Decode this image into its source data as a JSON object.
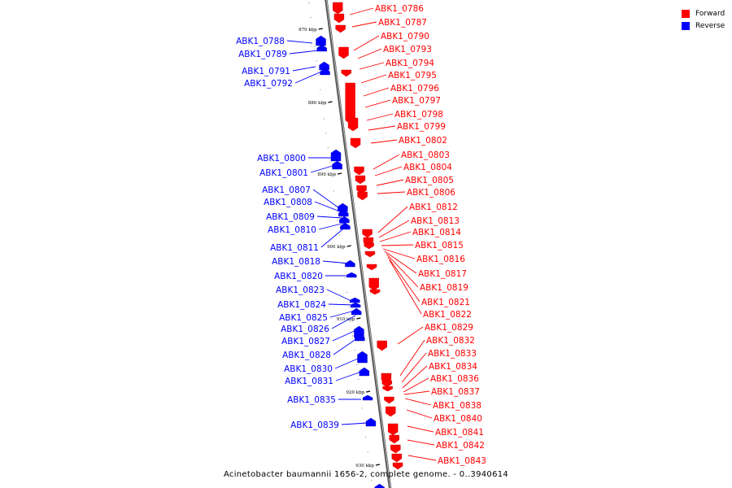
{
  "colors": {
    "forward": "#ff0000",
    "reverse": "#0000ff",
    "backbone": "#888888"
  },
  "legend": [
    {
      "label": "Forward",
      "color": "#ff0000"
    },
    {
      "label": "Reverse",
      "color": "#0000ff"
    }
  ],
  "caption": "Acinetobacter baumannii 1656-2, complete genome. - 0..3940614",
  "ticks": [
    "870 kbp",
    "880 kbp",
    "890 kbp",
    "900 kbp",
    "910 kbp",
    "920 kbp",
    "930 kbp"
  ],
  "forward_genes": [
    "ABK1_0786",
    "ABK1_0787",
    "ABK1_0790",
    "ABK1_0793",
    "ABK1_0794",
    "ABK1_0795",
    "ABK1_0796",
    "ABK1_0797",
    "ABK1_0798",
    "ABK1_0799",
    "ABK1_0802",
    "ABK1_0803",
    "ABK1_0804",
    "ABK1_0805",
    "ABK1_0806",
    "ABK1_0812",
    "ABK1_0813",
    "ABK1_0814",
    "ABK1_0815",
    "ABK1_0816",
    "ABK1_0817",
    "ABK1_0819",
    "ABK1_0821",
    "ABK1_0822",
    "ABK1_0829",
    "ABK1_0832",
    "ABK1_0833",
    "ABK1_0834",
    "ABK1_0836",
    "ABK1_0837",
    "ABK1_0838",
    "ABK1_0840",
    "ABK1_0841",
    "ABK1_0842",
    "ABK1_0843"
  ],
  "reverse_genes": [
    "ABK1_0788",
    "ABK1_0789",
    "ABK1_0791",
    "ABK1_0792",
    "ABK1_0800",
    "ABK1_0801",
    "ABK1_0807",
    "ABK1_0808",
    "ABK1_0809",
    "ABK1_0810",
    "ABK1_0811",
    "ABK1_0818",
    "ABK1_0820",
    "ABK1_0823",
    "ABK1_0824",
    "ABK1_0825",
    "ABK1_0826",
    "ABK1_0827",
    "ABK1_0828",
    "ABK1_0830",
    "ABK1_0831",
    "ABK1_0835",
    "ABK1_0839"
  ]
}
